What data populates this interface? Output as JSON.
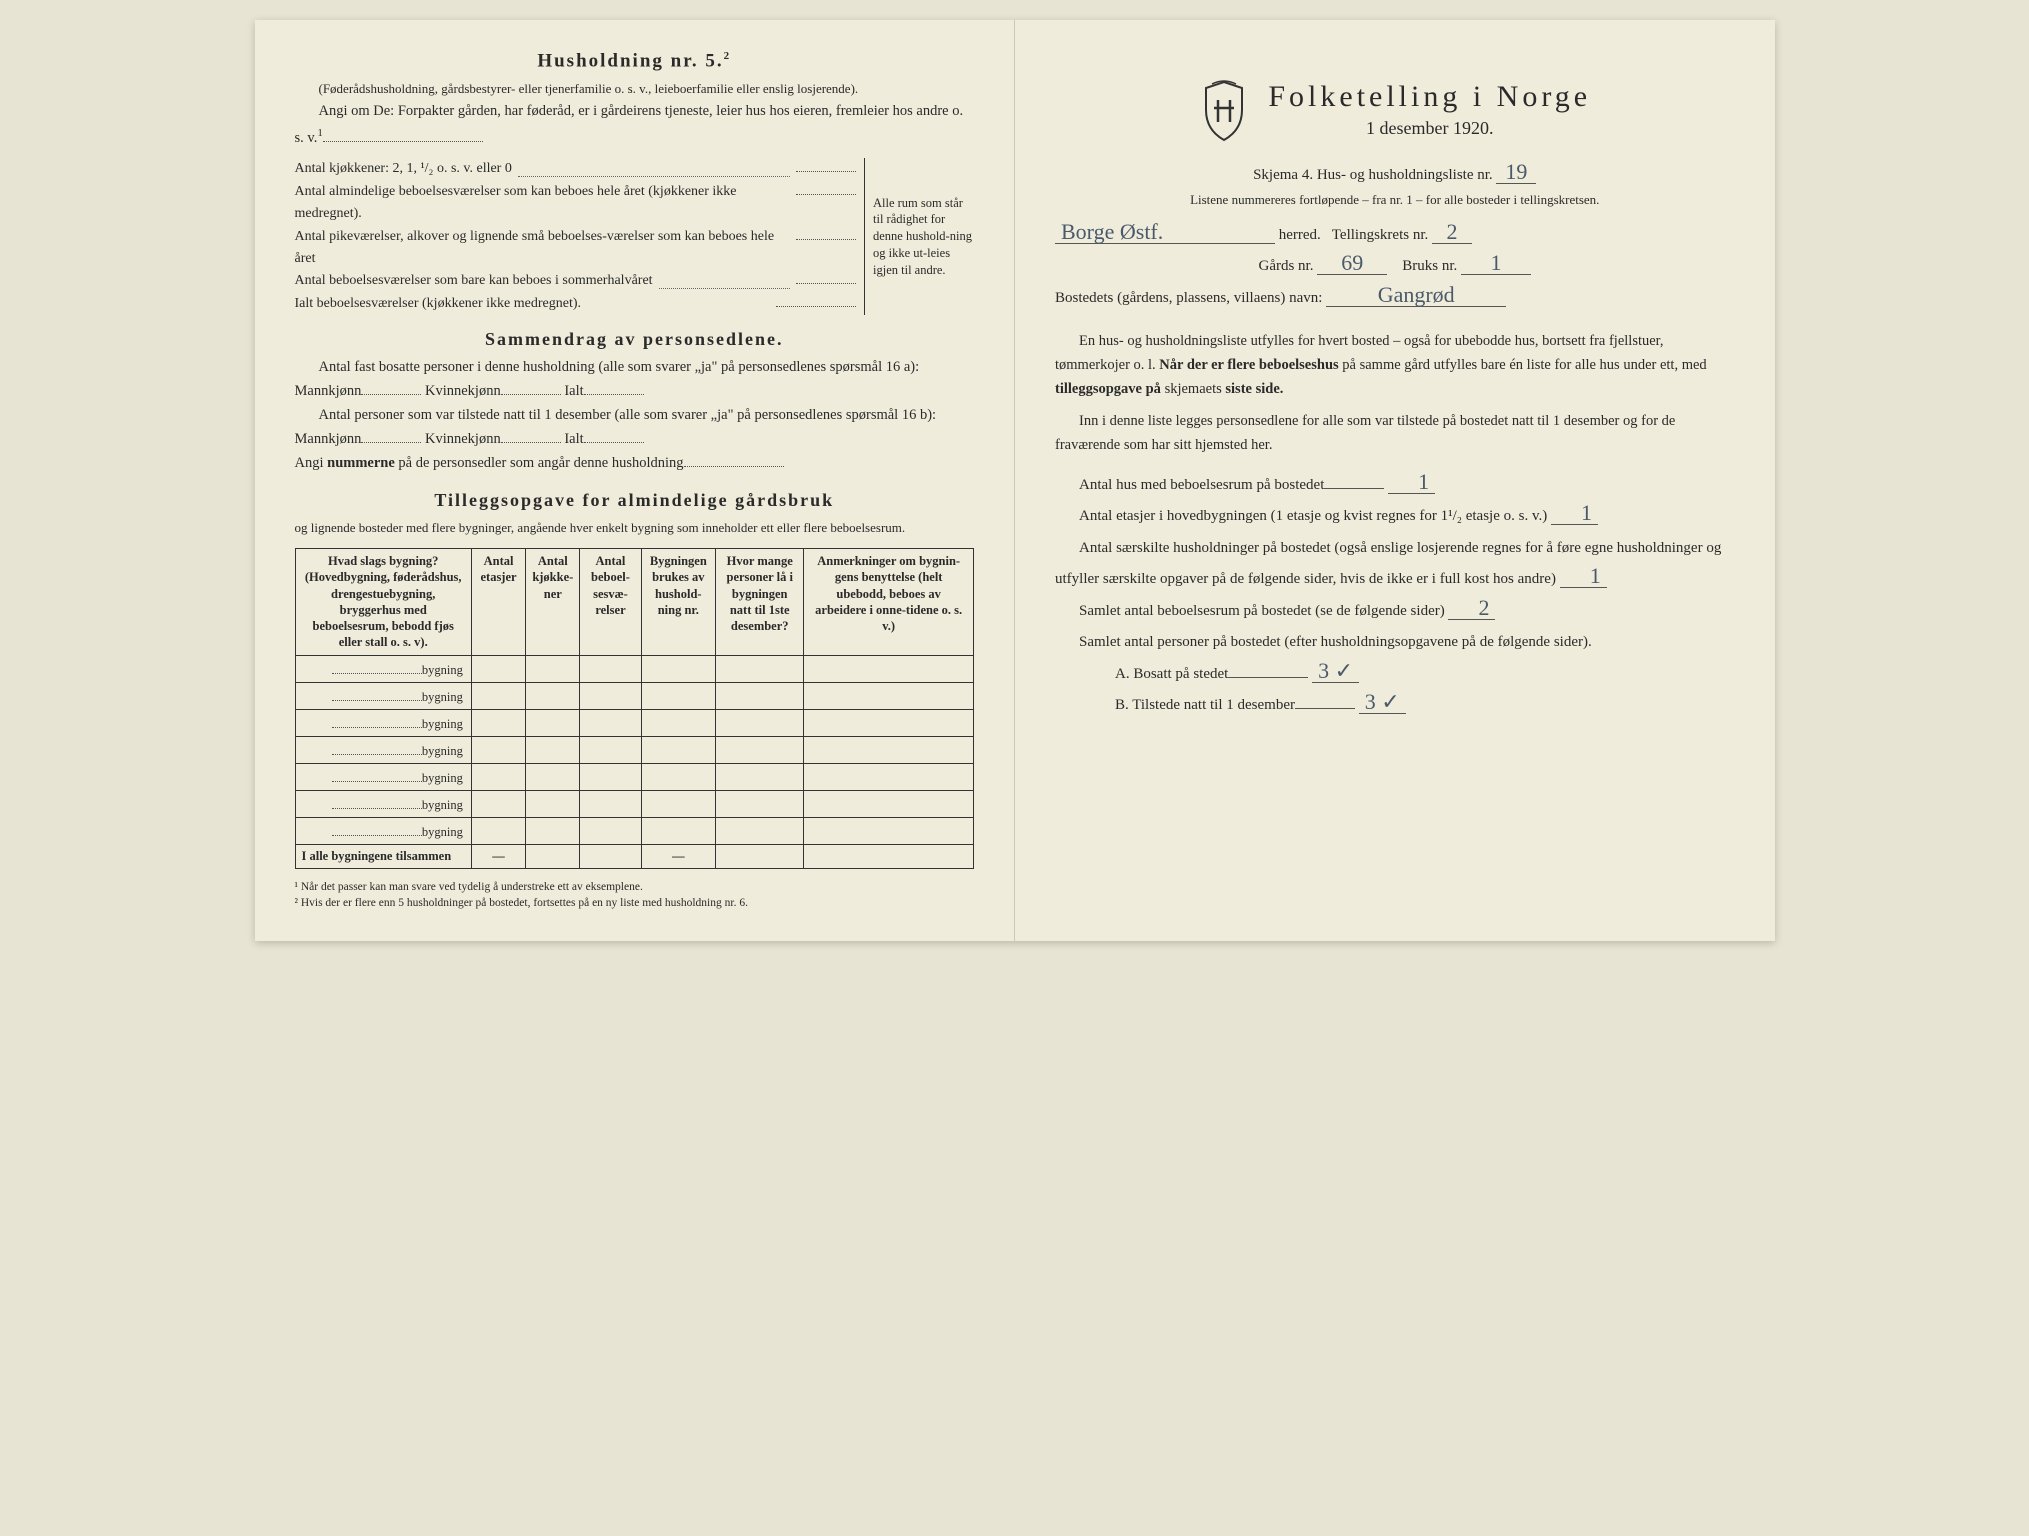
{
  "left": {
    "heading": "Husholdning nr. 5.",
    "heading_sup": "2",
    "intro1": "(Føderådshusholdning, gårdsbestyrer- eller tjenerfamilie o. s. v., leieboerfamilie eller enslig losjerende).",
    "intro2": "Angi om De: Forpakter gården, har føderåd, er i gårdeirens tjeneste, leier hus hos eieren, fremleier hos andre o. s. v.",
    "intro2_sup": "1",
    "kitchen_line": "Antal kjøkkener: 2, 1, ¹/₂ o. s. v. eller 0",
    "brace_lines": [
      "Antal almindelige beboelsesværelser som kan beboes hele året (kjøkkener ikke medregnet).",
      "Antal pikeværelser, alkover og lignende små beboelses-værelser som kan beboes hele året",
      "Antal beboelsesværelser som bare kan beboes i sommerhalvåret"
    ],
    "brace_note": "Alle rum som står til rådighet for denne hushold-ning og ikke ut-leies igjen til andre.",
    "ialt_line": "Ialt beboelsesværelser (kjøkkener ikke medregnet).",
    "summary_heading": "Sammendrag av personsedlene.",
    "summary1": "Antal fast bosatte personer i denne husholdning (alle som svarer „ja\" på personsedlenes spørsmål 16 a): Mannkjønn",
    "summary1b": "Kvinnekjønn",
    "summary1c": "Ialt",
    "summary2": "Antal personer som var tilstede natt til 1 desember (alle som svarer „ja\" på personsedlenes spørsmål 16 b): Mannkjønn",
    "summary3": "Angi",
    "summary3b": "nummerne",
    "summary3c": "på de personsedler som angår denne husholdning",
    "tillegg_heading": "Tilleggsopgave for almindelige gårdsbruk",
    "tillegg_sub": "og lignende bosteder med flere bygninger, angående hver enkelt bygning som inneholder ett eller flere beboelsesrum.",
    "table": {
      "headers": [
        "Hvad slags bygning?\n(Hovedbygning, føderådshus, drengestuebygning, bryggerhus med beboelsesrum, bebodd fjøs eller stall o. s. v).",
        "Antal etasjer",
        "Antal kjøkke-ner",
        "Antal beboel-sesvæ-relser",
        "Bygningen brukes av hushold-ning nr.",
        "Hvor mange personer lå i bygningen natt til 1ste desember?",
        "Anmerkninger om bygnin-gens benyttelse (helt ubebodd, beboes av arbeidere i onne-tidene o. s. v.)"
      ],
      "row_label": "bygning",
      "row_count": 7,
      "footer": "I alle bygningene tilsammen"
    },
    "footnotes": [
      "Når det passer kan man svare ved tydelig å understreke ett av eksemplene.",
      "Hvis der er flere enn 5 husholdninger på bostedet, fortsettes på en ny liste med husholdning nr. 6."
    ]
  },
  "right": {
    "main_title": "Folketelling i Norge",
    "sub_title": "1 desember 1920.",
    "skjema": "Skjema 4.  Hus- og husholdningsliste nr.",
    "skjema_nr": "19",
    "listene": "Listene nummereres fortløpende – fra nr. 1 – for alle bosteder i tellingskretsen.",
    "herred_hand": "Borge Østf.",
    "herred_label": "herred.",
    "tellingskrets_label": "Tellingskrets nr.",
    "tellingskrets_nr": "2",
    "gards_label": "Gårds nr.",
    "gards_nr": "69",
    "bruks_label": "Bruks nr.",
    "bruks_nr": "1",
    "bosted_label": "Bostedets (gårdens, plassens, villaens) navn:",
    "bosted_hand": "Gangrød",
    "para1a": "En hus- og husholdningsliste utfylles for hvert bosted – også for ubebodde hus, bortsett fra fjellstuer, tømmerkojer o. l.",
    "para1b": "Når der er flere beboelseshus",
    "para1c": "på samme gård utfylles bare én liste for alle hus under ett, med",
    "para1d": "tilleggsopgave på",
    "para1e": "skjemaets",
    "para1f": "siste side.",
    "para2": "Inn i denne liste legges personsedlene for alle som var tilstede på bostedet natt til 1 desember og for de fraværende som har sitt hjemsted her.",
    "q1": "Antal hus med beboelsesrum på bostedet",
    "q1_hand": "1",
    "q2": "Antal etasjer i hovedbygningen (1 etasje og kvist regnes for 1¹/₂ etasje o. s. v.)",
    "q2_hand": "1",
    "q3": "Antal særskilte husholdninger på bostedet (også enslige losjerende regnes for å føre egne husholdninger og utfyller særskilte opgaver på de følgende sider, hvis de ikke er i full kost hos andre)",
    "q3_hand": "1",
    "q4": "Samlet antal beboelsesrum på bostedet (se de følgende sider)",
    "q4_hand": "2",
    "q5": "Samlet antal personer på bostedet (efter husholdningsopgavene på de følgende sider).",
    "qA": "A.  Bosatt på stedet",
    "qA_hand": "3 ✓",
    "qB": "B.  Tilstede natt til 1 desember",
    "qB_hand": "3 ✓"
  }
}
